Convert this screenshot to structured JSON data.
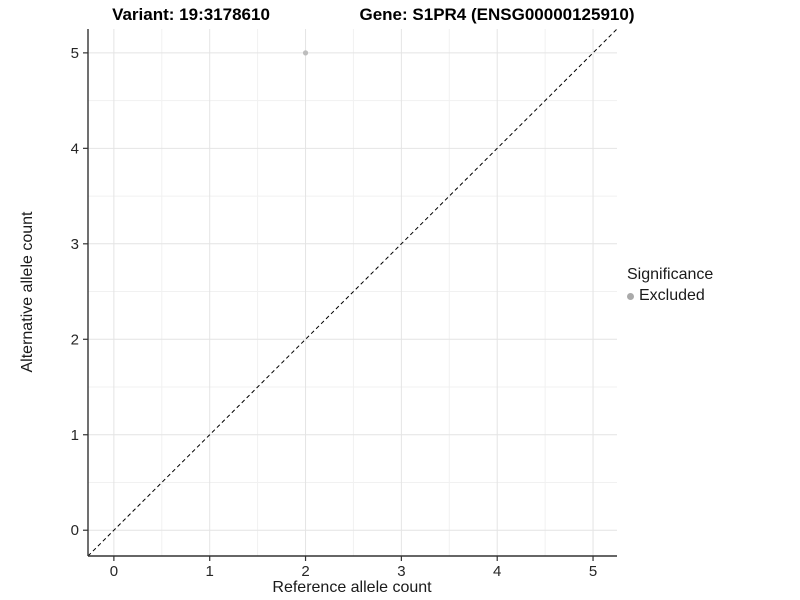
{
  "titles": {
    "variant": "Variant: 19:3178610",
    "gene": "Gene: S1PR4 (ENSG00000125910)"
  },
  "chart_data": {
    "type": "scatter",
    "title_left": "Variant: 19:3178610",
    "title_right": "Gene: S1PR4 (ENSG00000125910)",
    "xlabel": "Reference allele count",
    "ylabel": "Alternative allele count",
    "x_ticks": [
      0,
      1,
      2,
      3,
      4,
      5
    ],
    "y_ticks": [
      0,
      1,
      2,
      3,
      4,
      5
    ],
    "x_minor_ticks": [
      0.5,
      1.5,
      2.5,
      3.5,
      4.5
    ],
    "y_minor_ticks": [
      0.5,
      1.5,
      2.5,
      3.5,
      4.5
    ],
    "xlim": [
      -0.27,
      5.25
    ],
    "ylim": [
      -0.27,
      5.25
    ],
    "grid": "major+minor",
    "points": [
      {
        "x": 2,
        "y": 5,
        "series": "Excluded"
      }
    ],
    "identity_line": {
      "style": "dashed",
      "equation": "y = x",
      "from": [
        -0.27,
        -0.27
      ],
      "to": [
        5.25,
        5.25
      ]
    },
    "legend": {
      "title": "Significance",
      "position": "right",
      "items": [
        {
          "label": "Excluded",
          "color": "#aaaaaa"
        }
      ]
    },
    "colors": {
      "point": "#bdbdbd",
      "axis": "#333333",
      "tick": "#333333",
      "tick_label": "#262626",
      "grid_major": "#e4e4e4",
      "grid_minor": "#f1f1f1",
      "dashed_line": "#000000",
      "background": "#ffffff"
    }
  }
}
